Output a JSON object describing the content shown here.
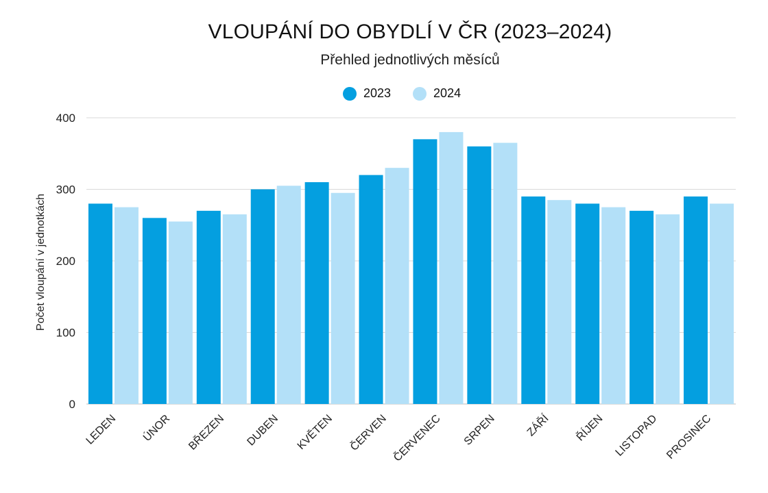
{
  "chart_data": {
    "type": "bar",
    "title": "VLOUPÁNÍ DO OBYDLÍ V ČR (2023–2024)",
    "subtitle": "Přehled jednotlivých měsíců",
    "ylabel": "Počet vloupání v jednotkách",
    "xlabel": "",
    "ylim": [
      0,
      400
    ],
    "yticks": [
      0,
      100,
      200,
      300,
      400
    ],
    "grid": true,
    "legend_position": "top-center",
    "categories": [
      "LEDEN",
      "ÚNOR",
      "BŘEZEN",
      "DUBEN",
      "KVĚTEN",
      "ČERVEN",
      "ČERVENEC",
      "SRPEN",
      "ZÁŘÍ",
      "ŘÍJEN",
      "LISTOPAD",
      "PROSINEC"
    ],
    "series": [
      {
        "name": "2023",
        "color": "#049fe0",
        "values": [
          280,
          260,
          270,
          300,
          310,
          320,
          370,
          360,
          290,
          280,
          270,
          290
        ]
      },
      {
        "name": "2024",
        "color": "#b3e0f8",
        "values": [
          275,
          255,
          265,
          305,
          295,
          330,
          380,
          365,
          285,
          275,
          265,
          280
        ]
      }
    ]
  }
}
